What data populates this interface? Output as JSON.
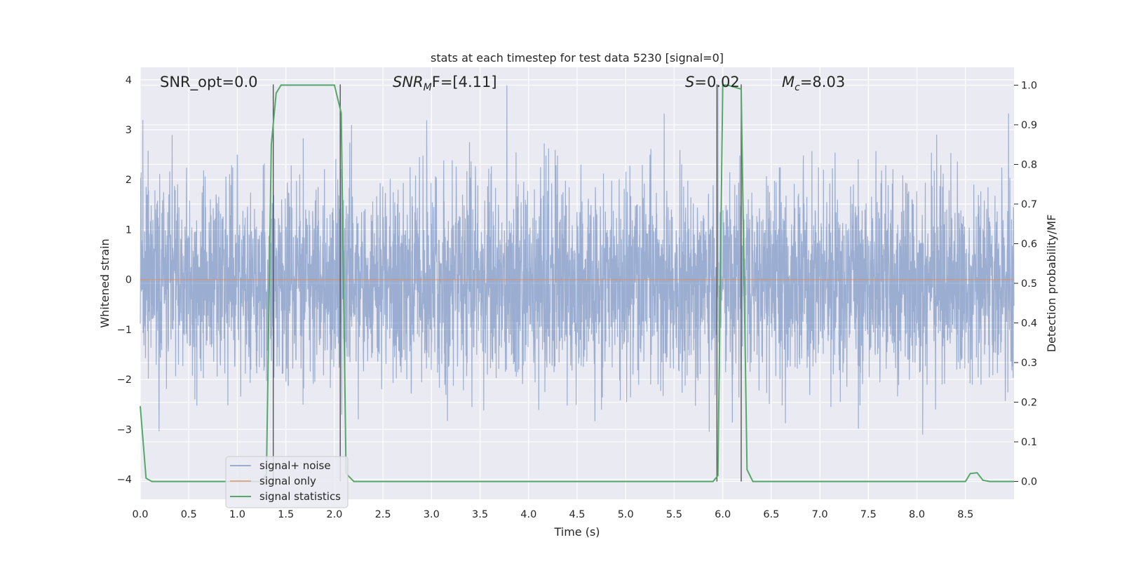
{
  "chart_data": {
    "type": "line",
    "title": "stats at each timestep for test data 5230 [signal=0]",
    "xlabel": "Time (s)",
    "ylabel": "Whitened strain",
    "y2label": "Detection probability/MF",
    "xlim": [
      0.0,
      9.0
    ],
    "ylim": [
      -4.4,
      4.25
    ],
    "y2lim": [
      -0.045,
      1.045
    ],
    "xticks": [
      "0.0",
      "0.5",
      "1.0",
      "1.5",
      "2.0",
      "2.5",
      "3.0",
      "3.5",
      "4.0",
      "4.5",
      "5.0",
      "5.5",
      "6.0",
      "6.5",
      "7.0",
      "7.5",
      "8.0",
      "8.5"
    ],
    "yticks": [
      "4",
      "3",
      "2",
      "1",
      "0",
      "−1",
      "−2",
      "−3",
      "−4"
    ],
    "y2ticks": [
      "1.0",
      "0.9",
      "0.8",
      "0.7",
      "0.6",
      "0.5",
      "0.4",
      "0.3",
      "0.2",
      "0.1",
      "0.0"
    ],
    "grid": true,
    "legend_position": "lower-left",
    "annotations": {
      "snr_opt": "SNR_opt=0.0",
      "snr_mf_prefix": "SNR",
      "snr_mf_sub": "M",
      "snr_mf_rest": "F=[4.11]",
      "s_label": "S",
      "s_value": "=0.02",
      "mc_label": "M",
      "mc_sub": "c",
      "mc_value": "=8.03"
    },
    "series": [
      {
        "name": "signal+ noise",
        "color": "#4c72b0",
        "style": "noise",
        "noise_std": 1.0,
        "noise_range": [
          -4.0,
          4.0
        ]
      },
      {
        "name": "signal only",
        "color": "#dd8452",
        "style": "line",
        "x": [
          0.0,
          9.0
        ],
        "y": [
          0.0,
          0.0
        ]
      },
      {
        "name": "signal statistics",
        "color": "#55a868",
        "axis": "right",
        "x": [
          0.0,
          0.06,
          0.12,
          1.25,
          1.3,
          1.35,
          1.4,
          1.45,
          2.0,
          2.07,
          2.12,
          2.2,
          5.9,
          5.95,
          6.0,
          6.05,
          6.19,
          6.25,
          6.31,
          8.5,
          8.55,
          8.62,
          8.68,
          8.75,
          9.0
        ],
        "y": [
          0.19,
          0.008,
          0.0,
          0.0,
          0.02,
          0.85,
          0.98,
          1.0,
          1.0,
          0.93,
          0.02,
          0.0,
          0.0,
          0.015,
          1.0,
          1.0,
          0.99,
          0.03,
          0.0,
          0.0,
          0.02,
          0.022,
          0.003,
          0.0,
          0.0
        ]
      }
    ],
    "vertical_markers_x": [
      1.37,
      2.06,
      5.94,
      6.19
    ],
    "marker_color": "#555555"
  }
}
